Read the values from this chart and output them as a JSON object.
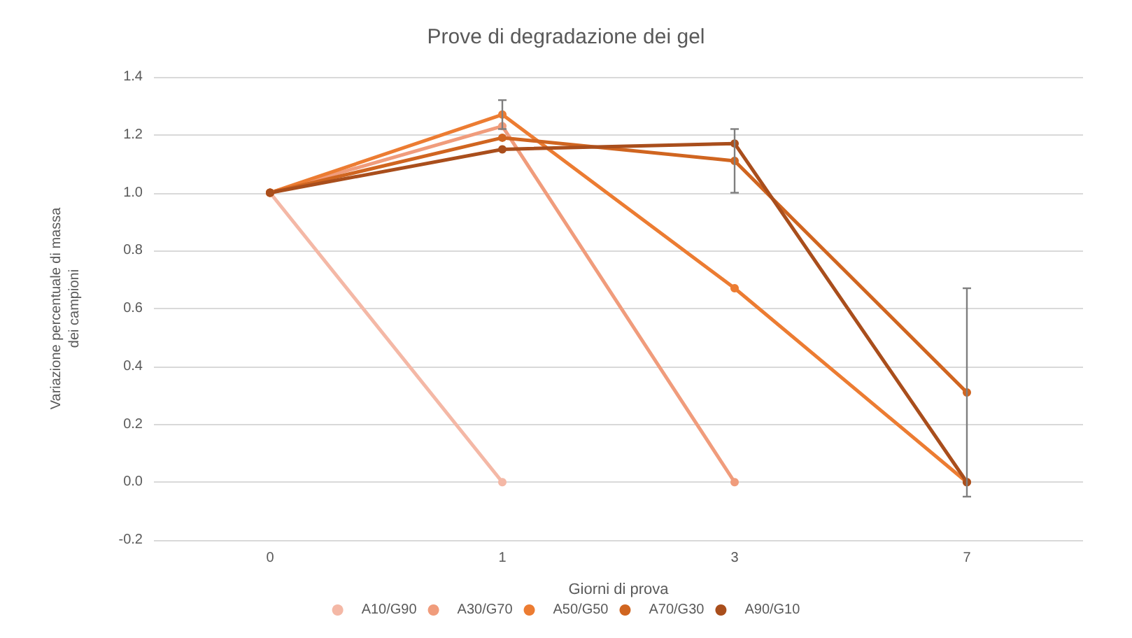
{
  "chart_data": {
    "type": "line",
    "title": "Prove di degradazione dei gel",
    "xlabel": "Giorni di prova",
    "ylabel": "Variazione percentuale di massa\ndei campioni",
    "categories": [
      "0",
      "1",
      "3",
      "7"
    ],
    "series": [
      {
        "name": "A10/G90",
        "color": "#f4b8a6",
        "values": [
          1.0,
          0.0,
          null,
          null
        ]
      },
      {
        "name": "A30/G70",
        "color": "#f09c7c",
        "values": [
          1.0,
          1.23,
          0.0,
          null
        ]
      },
      {
        "name": "A50/G50",
        "color": "#ec7c32",
        "values": [
          1.0,
          1.27,
          0.67,
          0.0
        ],
        "errors": [
          null,
          0.05,
          null,
          null
        ]
      },
      {
        "name": "A70/G30",
        "color": "#d06520",
        "values": [
          1.0,
          1.19,
          1.11,
          0.31
        ],
        "errors": [
          null,
          null,
          0.11,
          0.36
        ]
      },
      {
        "name": "A90/G10",
        "color": "#a94e1c",
        "values": [
          1.0,
          1.15,
          1.17,
          0.0
        ]
      }
    ],
    "ylim": [
      -0.2,
      1.4
    ],
    "yticks": [
      {
        "value": -0.2,
        "label": "-0.2"
      },
      {
        "value": 0,
        "label": "0.0"
      },
      {
        "value": 0.2,
        "label": "0.2"
      },
      {
        "value": 0.4,
        "label": "0.4"
      },
      {
        "value": 0.6,
        "label": "0.6"
      },
      {
        "value": 0.8,
        "label": "0.8"
      },
      {
        "value": 1,
        "label": "1.0"
      },
      {
        "value": 1.2,
        "label": "1.2"
      },
      {
        "value": 1.4,
        "label": "1.4"
      }
    ],
    "grid": "y",
    "legend": "bottom",
    "marker": "circle",
    "line_style": "solid"
  }
}
